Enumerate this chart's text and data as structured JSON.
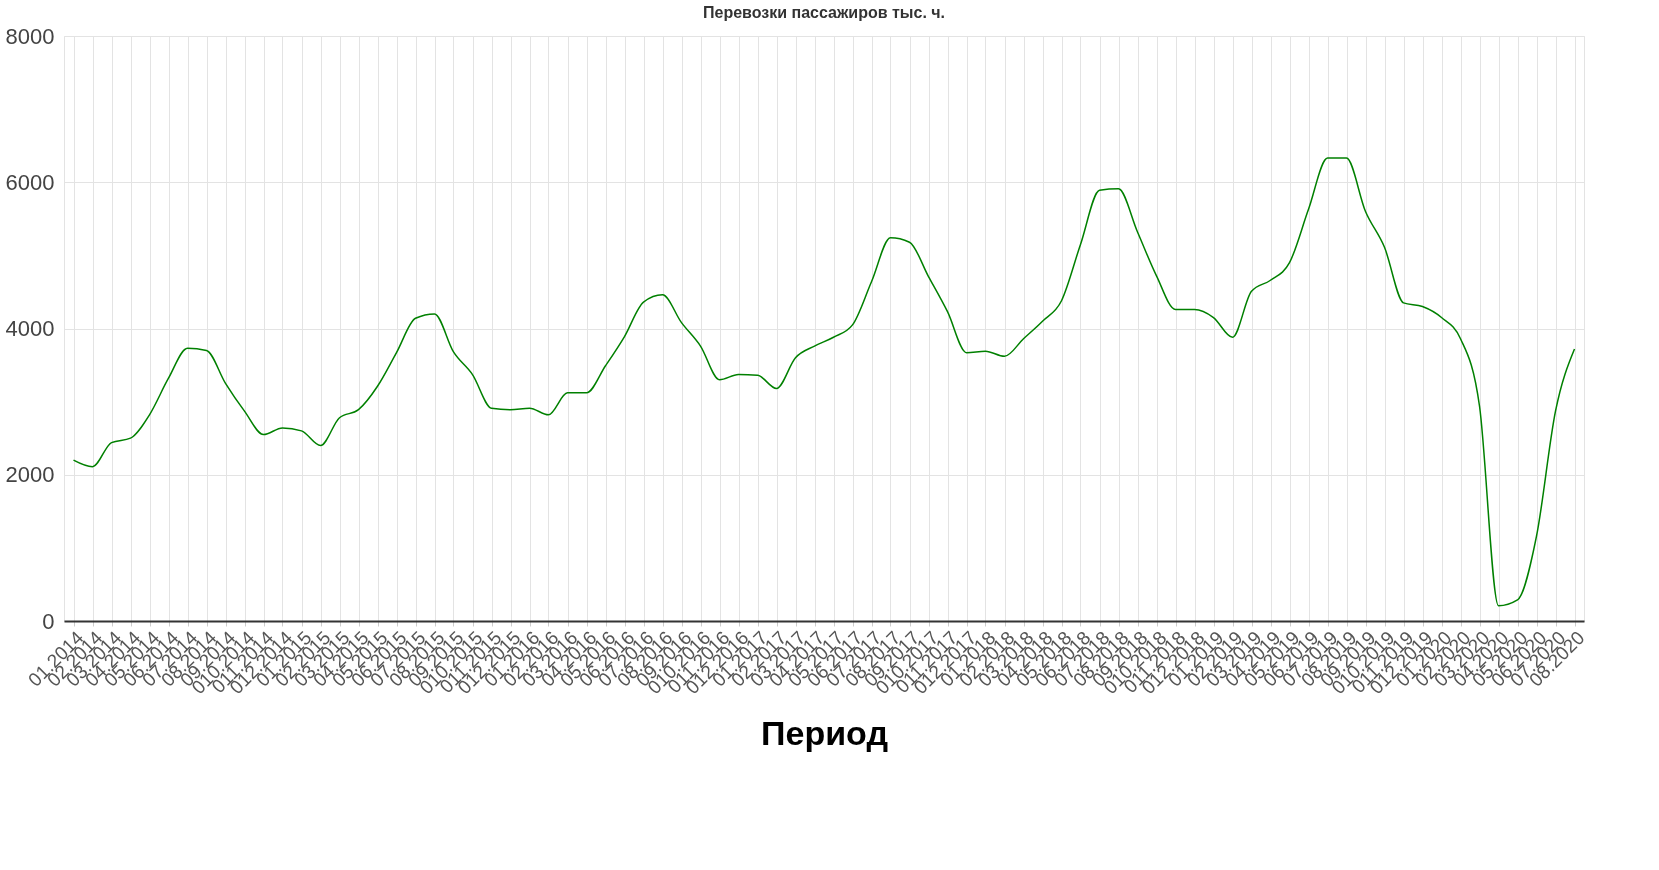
{
  "chart_data": {
    "type": "line",
    "title": "Перевозки пассажиров тыс. ч.",
    "xlabel": "Период",
    "categories": [
      "01.2014",
      "02.2014",
      "03.2014",
      "04.2014",
      "05.2014",
      "06.2014",
      "07.2014",
      "08.2014",
      "09.2014",
      "010.2014",
      "011.2014",
      "012.2014",
      "01.2015",
      "02.2015",
      "03.2015",
      "04.2015",
      "05.2015",
      "06.2015",
      "07.2015",
      "08.2015",
      "09.2015",
      "010.2015",
      "011.2015",
      "012.2015",
      "01.2016",
      "02.2016",
      "03.2016",
      "04.2016",
      "05.2016",
      "06.2016",
      "07.2016",
      "08.2016",
      "09.2016",
      "010.2016",
      "011.2016",
      "012.2016",
      "01.2017",
      "02.2017",
      "03.2017",
      "04.2017",
      "05.2017",
      "06.2017",
      "07.2017",
      "08.2017",
      "09.2017",
      "010.2017",
      "011.2017",
      "012.2017",
      "01.2018",
      "02.2018",
      "03.2018",
      "04.2018",
      "05.2018",
      "06.2018",
      "07.2018",
      "08.2018",
      "09.2018",
      "010.2018",
      "011.2018",
      "012.2018",
      "01.2019",
      "02.2019",
      "03.2019",
      "04.2019",
      "05.2019",
      "06.2019",
      "07.2019",
      "08.2019",
      "09.2019",
      "010.2019",
      "011.2019",
      "012.2019",
      "01.2020",
      "02.2020",
      "03.2020",
      "04.2020",
      "05.2020",
      "06.2020",
      "07.2020",
      "08.2020"
    ],
    "series": [
      {
        "color": "#008000",
        "values": [
          2200,
          2110,
          2440,
          2500,
          2820,
          3320,
          3730,
          3700,
          3250,
          2870,
          2550,
          2640,
          2600,
          2400,
          2780,
          2890,
          3210,
          3670,
          4140,
          4200,
          3680,
          3370,
          2910,
          2890,
          2910,
          2820,
          3120,
          3120,
          3490,
          3890,
          4360,
          4460,
          4080,
          3760,
          3300,
          3370,
          3360,
          3180,
          3600,
          3760,
          3880,
          4050,
          4640,
          5240,
          5180,
          4710,
          4230,
          3670,
          3690,
          3620,
          3860,
          4100,
          4380,
          5150,
          5890,
          5910,
          5320,
          4720,
          4260,
          4260,
          4150,
          3880,
          4510,
          4660,
          4900,
          5630,
          6330,
          6330,
          5600,
          5110,
          4350,
          4300,
          4150,
          3860,
          2940,
          210,
          290,
          1160,
          2870,
          3720
        ]
      }
    ],
    "ylim": [
      0,
      8000
    ],
    "yticks": [
      0,
      2000,
      4000,
      6000,
      8000
    ],
    "grid": true,
    "legend": false,
    "marker": "none",
    "line_style": "solid"
  }
}
